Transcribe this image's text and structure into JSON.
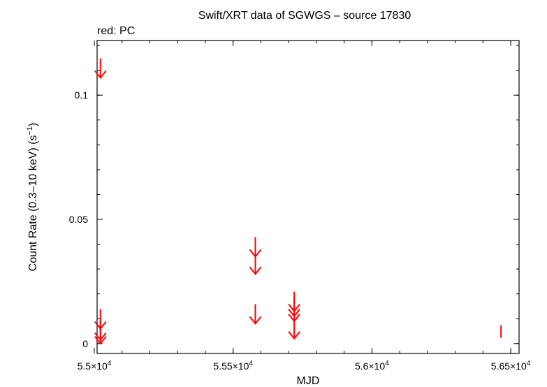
{
  "chart_data": {
    "type": "scatter",
    "title": "Swift/XRT data of SGWGS – source 17830",
    "subtitle": "red: PC",
    "xlabel": "MJD",
    "ylabel": "Count Rate (0.3–10 keV) (s",
    "ylabel_sup": "−1",
    "ylabel_tail": ")",
    "xlim": [
      55010,
      56530
    ],
    "ylim": [
      -0.004,
      0.122
    ],
    "x_ticks": [
      {
        "value": 55000,
        "mantissa": "5.5",
        "exp": "4"
      },
      {
        "value": 55500,
        "mantissa": "5.55",
        "exp": "4"
      },
      {
        "value": 56000,
        "mantissa": "5.6",
        "exp": "4"
      },
      {
        "value": 56500,
        "mantissa": "5.65",
        "exp": "4"
      }
    ],
    "x_minor_step": 100,
    "y_ticks": [
      {
        "value": 0,
        "label": "0"
      },
      {
        "value": 0.05,
        "label": "0.05"
      },
      {
        "value": 0.1,
        "label": "0.1"
      }
    ],
    "y_minor_step": 0.01,
    "grid": false,
    "series": [
      {
        "color": "#ff0000",
        "upper_limits": [
          {
            "x": 55022,
            "y": 0.107
          },
          {
            "x": 55022,
            "y": 0.006
          },
          {
            "x": 55022,
            "y": 0.0015
          },
          {
            "x": 55022,
            "y": 0.0
          },
          {
            "x": 55580,
            "y": 0.035
          },
          {
            "x": 55580,
            "y": 0.028
          },
          {
            "x": 55580,
            "y": 0.008
          },
          {
            "x": 55720,
            "y": 0.013
          },
          {
            "x": 55720,
            "y": 0.011
          },
          {
            "x": 55720,
            "y": 0.009
          },
          {
            "x": 55720,
            "y": 0.002
          }
        ],
        "points": [
          {
            "x": 56465,
            "y": 0.0048,
            "yerr": 0.0025
          }
        ]
      }
    ]
  }
}
